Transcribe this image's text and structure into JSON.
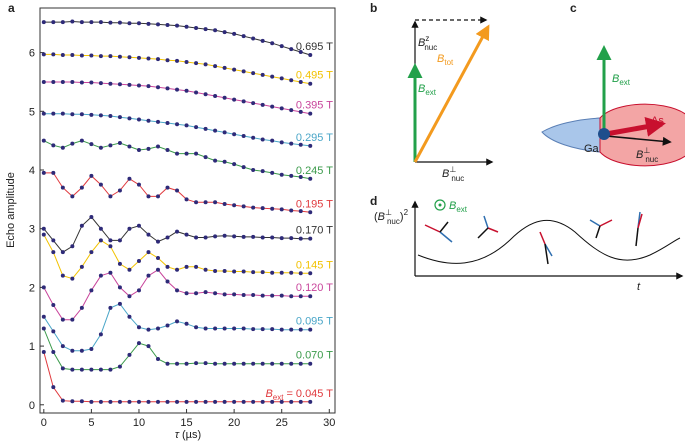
{
  "chart_data": {
    "type": "line",
    "panel": "a",
    "xlabel": {
      "symbol": "τ",
      "unit": "(µs)"
    },
    "ylabel": "Echo amplitude",
    "xlim": [
      -0.4,
      30.6
    ],
    "ylim": [
      -0.14,
      6.76
    ],
    "xticks": [
      0,
      5,
      10,
      15,
      20,
      25,
      30
    ],
    "yticks": [
      0,
      1,
      2,
      3,
      4,
      5,
      6
    ],
    "dot_color": "#2e2a78",
    "x": [
      0,
      1,
      2,
      3,
      4,
      5,
      6,
      7,
      8,
      9,
      10,
      11,
      12,
      13,
      14,
      15,
      16,
      17,
      18,
      19,
      20,
      21,
      22,
      23,
      24,
      25,
      26,
      27,
      28
    ],
    "label_prefix": {
      "symbol": "B",
      "sub": "ext",
      "eq": "="
    },
    "series": [
      {
        "name": "0.695 T",
        "color": "#333333",
        "values": [
          6.52,
          6.52,
          6.52,
          6.53,
          6.52,
          6.52,
          6.52,
          6.51,
          6.51,
          6.5,
          6.5,
          6.49,
          6.48,
          6.47,
          6.46,
          6.44,
          6.42,
          6.4,
          6.38,
          6.35,
          6.32,
          6.28,
          6.24,
          6.2,
          6.16,
          6.11,
          6.06,
          6.01,
          5.96
        ]
      },
      {
        "name": "0.495 T",
        "color": "#f2c200",
        "values": [
          5.97,
          5.97,
          5.96,
          5.96,
          5.95,
          5.95,
          5.94,
          5.94,
          5.93,
          5.92,
          5.91,
          5.9,
          5.89,
          5.87,
          5.86,
          5.84,
          5.82,
          5.8,
          5.77,
          5.74,
          5.71,
          5.68,
          5.65,
          5.62,
          5.59,
          5.56,
          5.53,
          5.5,
          5.47
        ]
      },
      {
        "name": "0.395 T",
        "color": "#c8449b",
        "values": [
          5.5,
          5.5,
          5.5,
          5.5,
          5.49,
          5.49,
          5.48,
          5.47,
          5.46,
          5.45,
          5.44,
          5.43,
          5.41,
          5.39,
          5.37,
          5.35,
          5.32,
          5.29,
          5.26,
          5.23,
          5.2,
          5.17,
          5.14,
          5.11,
          5.08,
          5.05,
          5.02,
          4.99,
          4.96
        ]
      },
      {
        "name": "0.295 T",
        "color": "#4aa6c8",
        "values": [
          4.96,
          4.96,
          4.96,
          4.95,
          4.95,
          4.94,
          4.93,
          4.92,
          4.9,
          4.88,
          4.86,
          4.84,
          4.82,
          4.8,
          4.78,
          4.76,
          4.73,
          4.7,
          4.67,
          4.64,
          4.61,
          4.58,
          4.55,
          4.52,
          4.5,
          4.47,
          4.45,
          4.43,
          4.41
        ]
      },
      {
        "name": "0.245 T",
        "color": "#3a9a4a",
        "values": [
          4.5,
          4.42,
          4.38,
          4.45,
          4.5,
          4.44,
          4.38,
          4.42,
          4.46,
          4.4,
          4.34,
          4.36,
          4.4,
          4.34,
          4.28,
          4.28,
          4.28,
          4.22,
          4.16,
          4.14,
          4.1,
          4.05,
          4.0,
          3.98,
          3.95,
          3.92,
          3.9,
          3.88,
          3.85
        ]
      },
      {
        "name": "0.195 T",
        "color": "#e03a3e",
        "values": [
          3.95,
          3.95,
          3.7,
          3.55,
          3.7,
          3.9,
          3.75,
          3.55,
          3.65,
          3.85,
          3.75,
          3.55,
          3.55,
          3.7,
          3.65,
          3.5,
          3.45,
          3.45,
          3.45,
          3.42,
          3.4,
          3.38,
          3.36,
          3.35,
          3.34,
          3.33,
          3.31,
          3.3,
          3.28
        ]
      },
      {
        "name": "0.170 T",
        "color": "#333333",
        "values": [
          3.0,
          2.8,
          2.6,
          2.7,
          3.05,
          3.2,
          3.0,
          2.8,
          2.8,
          3.0,
          3.05,
          2.9,
          2.78,
          2.85,
          2.95,
          2.9,
          2.85,
          2.85,
          2.87,
          2.88,
          2.87,
          2.86,
          2.86,
          2.85,
          2.85,
          2.84,
          2.84,
          2.83,
          2.83
        ]
      },
      {
        "name": "0.145 T",
        "color": "#f2c200",
        "values": [
          2.9,
          2.6,
          2.2,
          2.15,
          2.35,
          2.6,
          2.8,
          2.7,
          2.4,
          2.3,
          2.45,
          2.6,
          2.5,
          2.35,
          2.3,
          2.35,
          2.35,
          2.3,
          2.28,
          2.28,
          2.27,
          2.27,
          2.26,
          2.26,
          2.25,
          2.25,
          2.25,
          2.24,
          2.24
        ]
      },
      {
        "name": "0.120 T",
        "color": "#c8449b",
        "values": [
          2.0,
          1.7,
          1.45,
          1.45,
          1.65,
          1.95,
          2.2,
          2.25,
          2.0,
          1.85,
          1.95,
          2.2,
          2.3,
          2.1,
          1.95,
          1.9,
          1.9,
          1.92,
          1.9,
          1.88,
          1.88,
          1.87,
          1.87,
          1.86,
          1.86,
          1.86,
          1.85,
          1.85,
          1.85
        ]
      },
      {
        "name": "0.095 T",
        "color": "#4aa6c8",
        "values": [
          1.5,
          1.25,
          1.0,
          0.92,
          0.92,
          0.95,
          1.2,
          1.65,
          1.72,
          1.5,
          1.32,
          1.28,
          1.3,
          1.35,
          1.42,
          1.38,
          1.32,
          1.3,
          1.3,
          1.3,
          1.3,
          1.3,
          1.29,
          1.29,
          1.29,
          1.28,
          1.28,
          1.28,
          1.28
        ]
      },
      {
        "name": "0.070 T",
        "color": "#3a9a4a",
        "values": [
          1.3,
          0.9,
          0.62,
          0.6,
          0.6,
          0.6,
          0.6,
          0.6,
          0.65,
          0.85,
          1.05,
          1.0,
          0.78,
          0.7,
          0.7,
          0.7,
          0.71,
          0.71,
          0.7,
          0.7,
          0.7,
          0.7,
          0.7,
          0.7,
          0.7,
          0.7,
          0.7,
          0.7,
          0.7
        ]
      },
      {
        "name": "0.045 T",
        "color": "#e03a3e",
        "values": [
          0.9,
          0.3,
          0.07,
          0.06,
          0.06,
          0.05,
          0.05,
          0.05,
          0.05,
          0.05,
          0.05,
          0.05,
          0.05,
          0.05,
          0.05,
          0.05,
          0.05,
          0.05,
          0.05,
          0.05,
          0.05,
          0.05,
          0.05,
          0.05,
          0.05,
          0.05,
          0.05,
          0.05,
          0.05
        ]
      }
    ]
  },
  "panels": {
    "b": {
      "letter": "b",
      "bz": {
        "symbol": "B",
        "sup": "z",
        "sub": "nuc"
      },
      "bext": {
        "symbol": "B",
        "sub": "ext"
      },
      "btot": {
        "symbol": "B",
        "sub": "tot"
      },
      "bperp": {
        "symbol": "B",
        "sup": "⊥",
        "sub": "nuc"
      }
    },
    "c": {
      "letter": "c",
      "bext": {
        "symbol": "B",
        "sub": "ext"
      },
      "as": "As",
      "ga": "Ga",
      "bperp": {
        "symbol": "B",
        "sup": "⊥",
        "sub": "nuc"
      }
    },
    "d": {
      "letter": "d",
      "ylabel": {
        "open": "(",
        "symbol": "B",
        "sup": "⊥",
        "sub": "nuc",
        "close": ")",
        "power": "2"
      },
      "bext": {
        "symbol": "B",
        "sub": "ext"
      },
      "xlabel": "t"
    }
  }
}
